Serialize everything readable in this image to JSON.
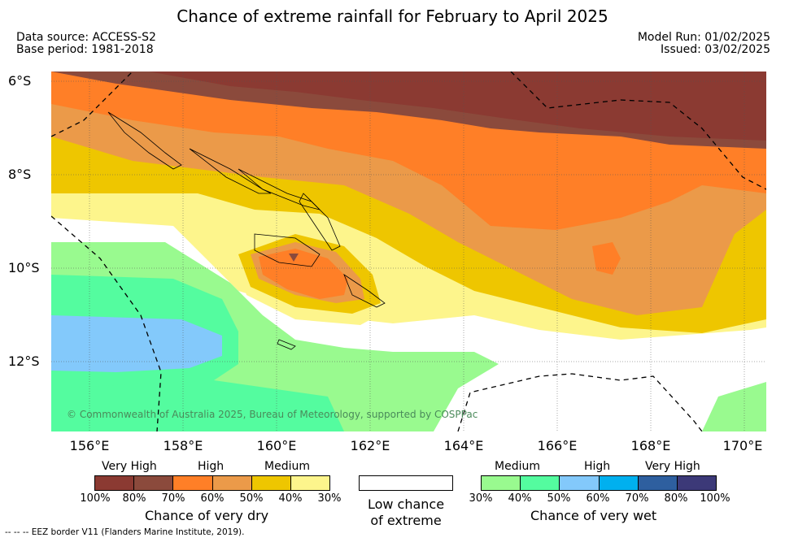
{
  "title": "Chance of extreme rainfall for February to April 2025",
  "data_source": "Data source: ACCESS-S2",
  "base_period": "Base period: 1981-2018",
  "model_run": "Model Run: 01/02/2025",
  "issued": "Issued: 03/02/2025",
  "latitudes": [
    "6°S",
    "8°S",
    "10°S",
    "12°S"
  ],
  "longitudes": [
    "156°E",
    "158°E",
    "160°E",
    "162°E",
    "164°E",
    "166°E",
    "168°E",
    "170°E"
  ],
  "credit": "© Commonwealth of Australia 2025, Bureau of Meteorology, supported by COSPPac",
  "dry_legend": {
    "categories": [
      "Very High",
      "High",
      "Medium"
    ],
    "ticks": [
      "100%",
      "80%",
      "70%",
      "60%",
      "50%",
      "40%",
      "30%"
    ],
    "colors": [
      "#8b3a32",
      "#8b4a3c",
      "#ff7f27",
      "#eb9a49",
      "#eec600",
      "#fdf58c"
    ],
    "title": "Chance of very dry"
  },
  "neutral_legend": {
    "title_line1": "Low chance",
    "title_line2": "of extreme",
    "color": "#ffffff"
  },
  "wet_legend": {
    "categories": [
      "Medium",
      "High",
      "Very High"
    ],
    "ticks": [
      "30%",
      "40%",
      "50%",
      "60%",
      "70%",
      "80%",
      "100%"
    ],
    "colors": [
      "#99fa8f",
      "#54fc9f",
      "#83c9fb",
      "#00b0ef",
      "#2e5f9f",
      "#3c3978"
    ],
    "title": "Chance of very wet"
  },
  "eez_note": "--  --  -- EEZ border V11 (Flanders Marine Institute, 2019)."
}
